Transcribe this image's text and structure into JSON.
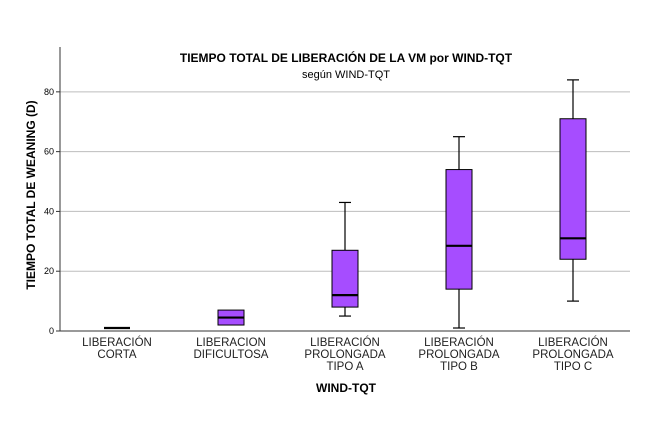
{
  "chart_data": {
    "type": "boxplot",
    "title": "TIEMPO TOTAL DE LIBERACIÓN DE LA VM por WIND-TQT",
    "subtitle": "según WIND-TQT",
    "xlabel": "WIND-TQT",
    "ylabel": "TIEMPO TOTAL DE WEANING (D)",
    "ylim": [
      0,
      95
    ],
    "yticks": [
      0,
      20,
      40,
      60,
      80
    ],
    "grid": true,
    "box_color": "#a64dff",
    "categories": [
      {
        "label": [
          "LIBERACIÓN",
          "CORTA"
        ],
        "min": 1,
        "q1": 1,
        "median": 1,
        "q3": 1,
        "max": 1
      },
      {
        "label": [
          "LIBERACION",
          "DIFICULTOSA"
        ],
        "min": 2,
        "q1": 2,
        "median": 4.5,
        "q3": 7,
        "max": 7
      },
      {
        "label": [
          "LIBERACIÓN",
          "PROLONGADA",
          "TIPO A"
        ],
        "min": 5,
        "q1": 8,
        "median": 12,
        "q3": 27,
        "max": 43
      },
      {
        "label": [
          "LIBERACIÓN",
          "PROLONGADA",
          "TIPO B"
        ],
        "min": 1,
        "q1": 14,
        "median": 28.5,
        "q3": 54,
        "max": 65
      },
      {
        "label": [
          "LIBERACIÓN",
          "PROLONGADA",
          "TIPO C"
        ],
        "min": 10,
        "q1": 24,
        "median": 31,
        "q3": 71,
        "max": 84
      }
    ]
  }
}
